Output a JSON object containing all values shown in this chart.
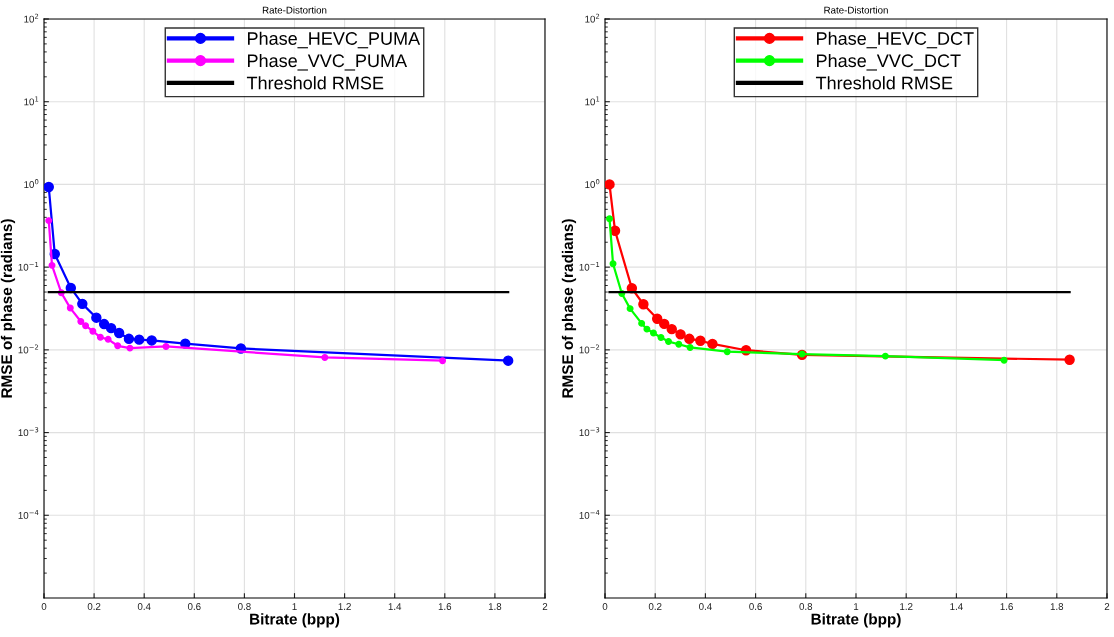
{
  "chart_data": [
    {
      "type": "line",
      "title": "Rate-Distortion",
      "xlabel": "Bitrate (bpp)",
      "ylabel": "RMSE of phase (radians)",
      "log": "y",
      "grid": true,
      "legend": "top",
      "marker": "circle",
      "line_style": "solid",
      "xlim": [
        0,
        2
      ],
      "xticks": [
        0,
        0.2,
        0.4,
        0.6,
        0.8,
        1,
        1.2,
        1.4,
        1.6,
        1.8,
        2
      ],
      "ylim": [
        1e-05,
        100
      ],
      "yticks": [
        {
          "value": 0.0001,
          "label": "10$^{−4}$"
        },
        {
          "value": 0.001,
          "label": "10$^{−3}$"
        },
        {
          "value": 0.01,
          "label": "10$^{−2}$"
        },
        {
          "value": 0.1,
          "label": "10$^{−1}$"
        },
        {
          "value": 1,
          "label": "10$^{0}$"
        },
        {
          "value": 10,
          "label": "10$^{1}$"
        },
        {
          "value": 100,
          "label": "10$^{2}$"
        }
      ],
      "series": [
        {
          "name": "Phase_HEVC_PUMA",
          "color": "#0000ff",
          "x": [
            0.019,
            0.043,
            0.107,
            0.153,
            0.209,
            0.24,
            0.268,
            0.3,
            0.339,
            0.38,
            0.43,
            0.564,
            0.786,
            1.853
          ],
          "values": [
            0.93,
            0.144,
            0.056,
            0.036,
            0.0245,
            0.0205,
            0.0183,
            0.016,
            0.0136,
            0.0133,
            0.013,
            0.0119,
            0.0104,
            0.0074
          ]
        },
        {
          "name": "Phase_VVC_PUMA",
          "color": "#ff00ff",
          "x": [
            0.019,
            0.032,
            0.069,
            0.105,
            0.147,
            0.166,
            0.195,
            0.225,
            0.256,
            0.294,
            0.343,
            0.487,
            1.121,
            1.591
          ],
          "values": [
            0.365,
            0.105,
            0.049,
            0.032,
            0.022,
            0.0196,
            0.0168,
            0.0142,
            0.0134,
            0.0112,
            0.0105,
            0.011,
            0.0081,
            0.0074
          ]
        },
        {
          "name": "Threshold RMSE",
          "color": "#000000",
          "type": "line",
          "marker": "none",
          "x": [
            0.019,
            1.853
          ],
          "values": [
            0.05,
            0.05
          ]
        }
      ]
    },
    {
      "type": "line",
      "title": "Rate-Distortion",
      "xlabel": "Bitrate (bpp)",
      "ylabel": "RMSE of phase (radians)",
      "log": "y",
      "grid": true,
      "legend": "top",
      "marker": "circle",
      "line_style": "solid",
      "xlim": [
        0,
        2
      ],
      "xticks": [
        0,
        0.2,
        0.4,
        0.6,
        0.8,
        1,
        1.2,
        1.4,
        1.6,
        1.8,
        2
      ],
      "ylim": [
        1e-05,
        100
      ],
      "yticks": [
        {
          "value": 0.0001,
          "label": "10$^{−4}$"
        },
        {
          "value": 0.001,
          "label": "10$^{−3}$"
        },
        {
          "value": 0.01,
          "label": "10$^{−2}$"
        },
        {
          "value": 0.1,
          "label": "10$^{−1}$"
        },
        {
          "value": 1,
          "label": "10$^{0}$"
        },
        {
          "value": 10,
          "label": "10$^{1}$"
        },
        {
          "value": 100,
          "label": "10$^{2}$"
        }
      ],
      "series": [
        {
          "name": "Phase_HEVC_DCT",
          "color": "#ff0000",
          "x": [
            0.018,
            0.04,
            0.107,
            0.153,
            0.208,
            0.236,
            0.266,
            0.301,
            0.336,
            0.38,
            0.428,
            0.562,
            0.785,
            1.851
          ],
          "values": [
            1.0,
            0.275,
            0.0555,
            0.0356,
            0.0238,
            0.0206,
            0.0178,
            0.0154,
            0.0136,
            0.0129,
            0.0118,
            0.0099,
            0.0087,
            0.0076
          ]
        },
        {
          "name": "Phase_VVC_DCT",
          "color": "#00ff00",
          "x": [
            0.018,
            0.032,
            0.067,
            0.1,
            0.146,
            0.167,
            0.193,
            0.223,
            0.253,
            0.294,
            0.339,
            0.487,
            0.785,
            1.117,
            1.59
          ],
          "values": [
            0.384,
            0.11,
            0.048,
            0.0315,
            0.0209,
            0.0178,
            0.016,
            0.0141,
            0.0126,
            0.0117,
            0.0107,
            0.0095,
            0.0089,
            0.0084,
            0.0075
          ]
        },
        {
          "name": "Threshold RMSE",
          "color": "#000000",
          "type": "line",
          "marker": "none",
          "x": [
            0.018,
            1.851
          ],
          "values": [
            0.05,
            0.05
          ]
        }
      ]
    }
  ]
}
